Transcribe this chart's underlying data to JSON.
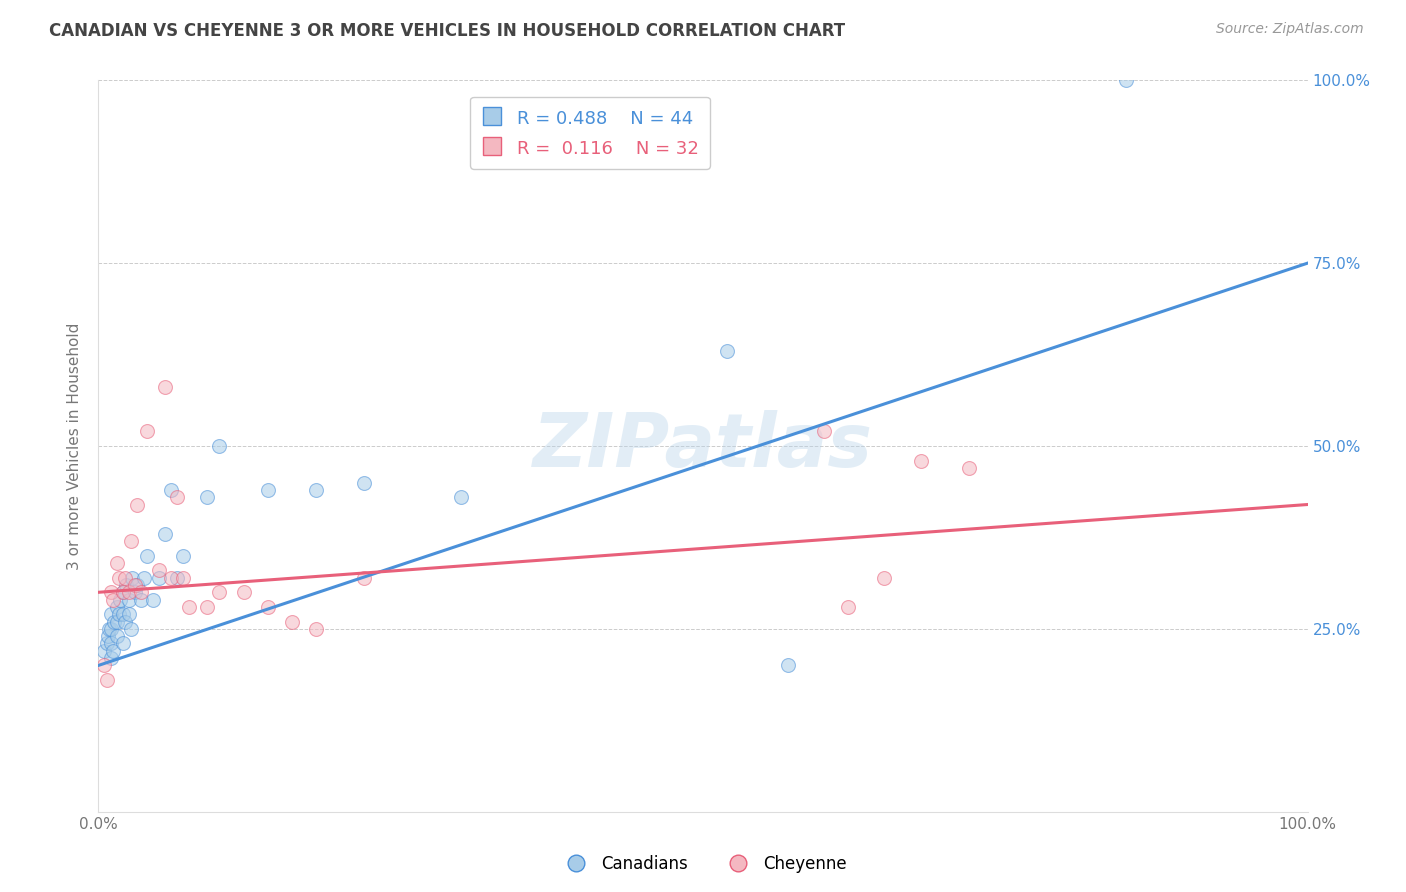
{
  "title": "CANADIAN VS CHEYENNE 3 OR MORE VEHICLES IN HOUSEHOLD CORRELATION CHART",
  "source": "Source: ZipAtlas.com",
  "ylabel": "3 or more Vehicles in Household",
  "xlim": [
    0,
    1.0
  ],
  "ylim": [
    0,
    1.0
  ],
  "ytick_labels_right": [
    "25.0%",
    "50.0%",
    "75.0%",
    "100.0%"
  ],
  "ytick_positions_right": [
    0.25,
    0.5,
    0.75,
    1.0
  ],
  "canadians_R": 0.488,
  "canadians_N": 44,
  "cheyenne_R": 0.116,
  "cheyenne_N": 32,
  "canadians_color": "#a8cce8",
  "cheyenne_color": "#f4b8c1",
  "canadians_line_color": "#4a90d9",
  "cheyenne_line_color": "#e8607a",
  "watermark": "ZIPatlas",
  "canadians_x": [
    0.005,
    0.007,
    0.008,
    0.009,
    0.01,
    0.01,
    0.01,
    0.01,
    0.012,
    0.013,
    0.015,
    0.015,
    0.015,
    0.017,
    0.018,
    0.02,
    0.02,
    0.02,
    0.022,
    0.023,
    0.025,
    0.025,
    0.027,
    0.028,
    0.03,
    0.032,
    0.035,
    0.038,
    0.04,
    0.045,
    0.05,
    0.055,
    0.06,
    0.065,
    0.07,
    0.09,
    0.1,
    0.14,
    0.18,
    0.22,
    0.3,
    0.52,
    0.57,
    0.85
  ],
  "canadians_y": [
    0.22,
    0.23,
    0.24,
    0.25,
    0.21,
    0.23,
    0.25,
    0.27,
    0.22,
    0.26,
    0.24,
    0.26,
    0.28,
    0.27,
    0.29,
    0.23,
    0.27,
    0.3,
    0.26,
    0.31,
    0.27,
    0.29,
    0.25,
    0.32,
    0.3,
    0.31,
    0.29,
    0.32,
    0.35,
    0.29,
    0.32,
    0.38,
    0.44,
    0.32,
    0.35,
    0.43,
    0.5,
    0.44,
    0.44,
    0.45,
    0.43,
    0.63,
    0.2,
    1.0
  ],
  "cheyenne_x": [
    0.005,
    0.007,
    0.01,
    0.012,
    0.015,
    0.017,
    0.02,
    0.022,
    0.025,
    0.027,
    0.03,
    0.032,
    0.035,
    0.04,
    0.05,
    0.055,
    0.06,
    0.065,
    0.07,
    0.075,
    0.09,
    0.1,
    0.12,
    0.14,
    0.16,
    0.18,
    0.22,
    0.6,
    0.62,
    0.65,
    0.68,
    0.72
  ],
  "cheyenne_y": [
    0.2,
    0.18,
    0.3,
    0.29,
    0.34,
    0.32,
    0.3,
    0.32,
    0.3,
    0.37,
    0.31,
    0.42,
    0.3,
    0.52,
    0.33,
    0.58,
    0.32,
    0.43,
    0.32,
    0.28,
    0.28,
    0.3,
    0.3,
    0.28,
    0.26,
    0.25,
    0.32,
    0.52,
    0.28,
    0.32,
    0.48,
    0.47
  ],
  "can_line_x0": 0.0,
  "can_line_y0": 0.2,
  "can_line_x1": 1.0,
  "can_line_y1": 0.75,
  "che_line_x0": 0.0,
  "che_line_y0": 0.3,
  "che_line_x1": 1.0,
  "che_line_y1": 0.42,
  "background_color": "#ffffff",
  "grid_color": "#cccccc"
}
